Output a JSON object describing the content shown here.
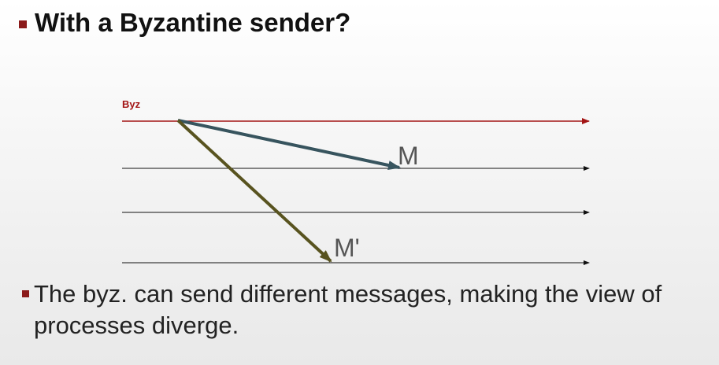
{
  "slide": {
    "title": "With a Byzantine sender?",
    "body": "The byz. can send different messages, making the view of processes diverge.",
    "bullet_color": "#8b1a1a"
  },
  "diagram": {
    "sender_label": "Byz",
    "message_1_label": "M",
    "message_2_label": "M'",
    "colors": {
      "byz_line": "#a31515",
      "process_line": "#111111",
      "message_1": "#37545e",
      "message_2": "#58531f"
    }
  }
}
